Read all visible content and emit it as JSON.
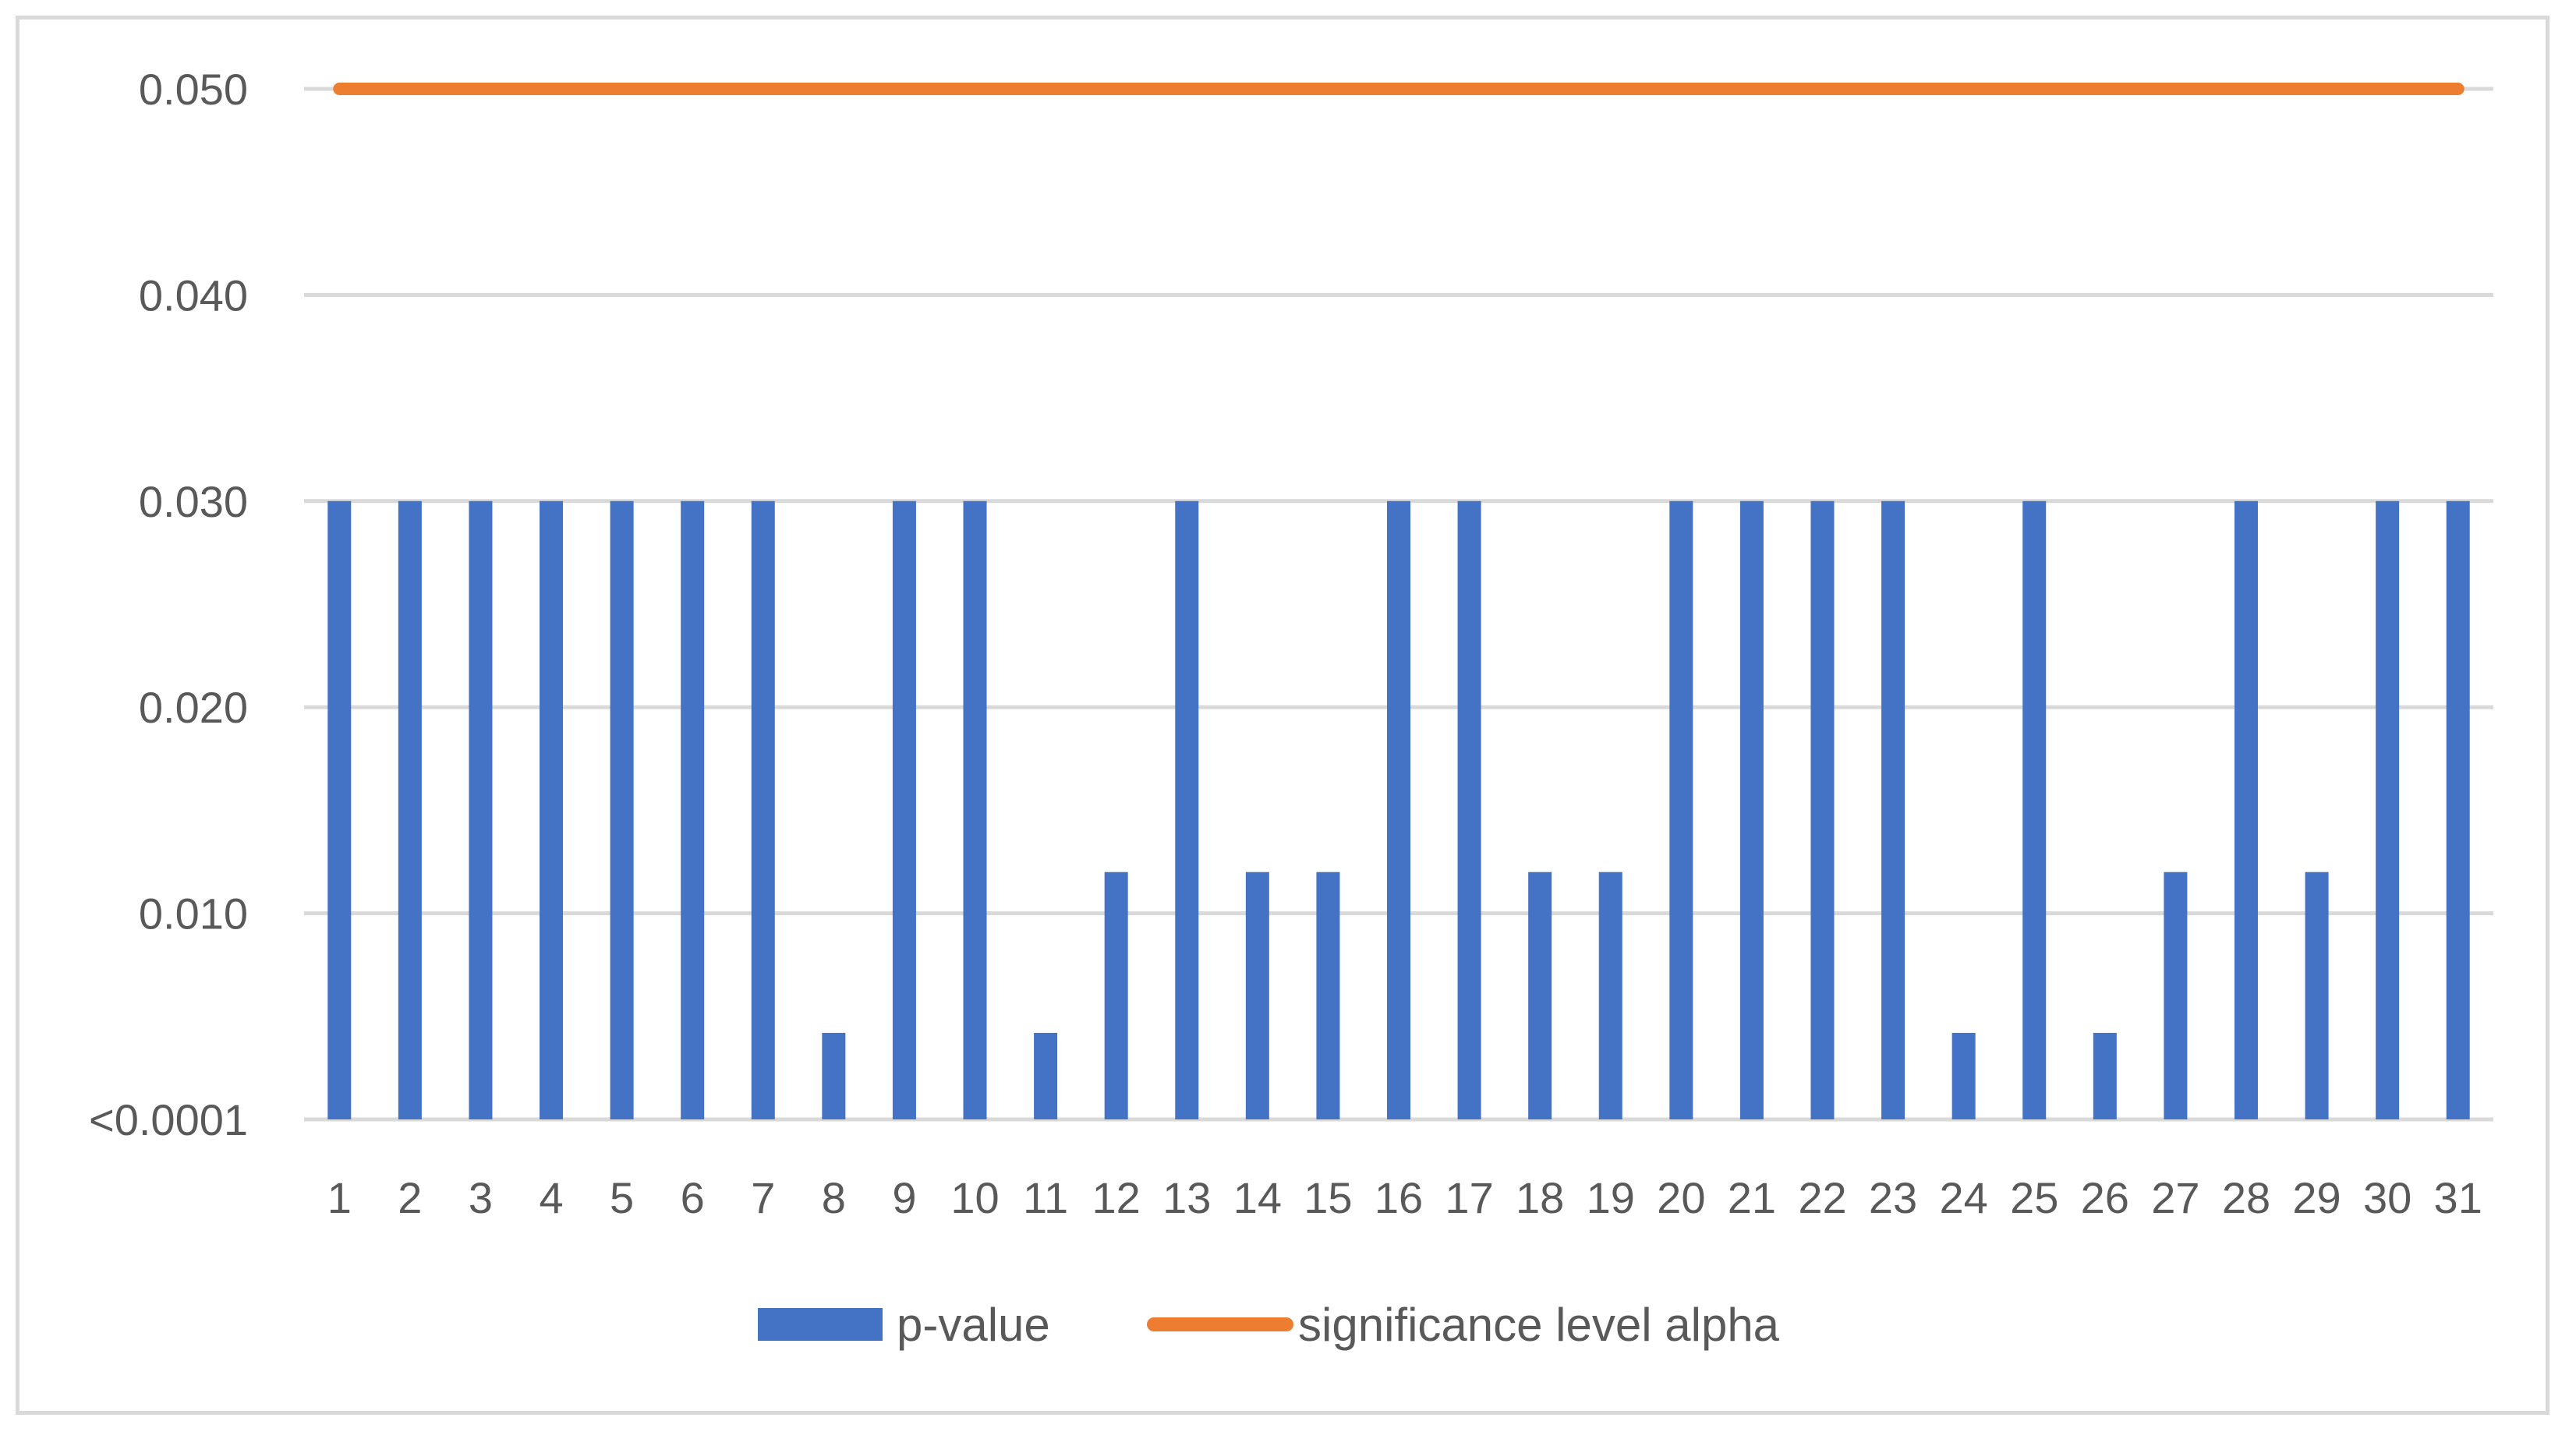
{
  "chart_data": {
    "type": "bar",
    "title": "",
    "xlabel": "",
    "ylabel": "",
    "categories": [
      "1",
      "2",
      "3",
      "4",
      "5",
      "6",
      "7",
      "8",
      "9",
      "10",
      "11",
      "12",
      "13",
      "14",
      "15",
      "16",
      "17",
      "18",
      "19",
      "20",
      "21",
      "22",
      "23",
      "24",
      "25",
      "26",
      "27",
      "28",
      "29",
      "30",
      "31"
    ],
    "y_tick_labels": [
      "<0.0001",
      "0.010",
      "0.020",
      "0.030",
      "0.040",
      "0.050"
    ],
    "y_tick_values": [
      0,
      0.01,
      0.02,
      0.03,
      0.04,
      0.05
    ],
    "ylim": [
      0,
      0.05
    ],
    "grid": true,
    "legend_position": "bottom",
    "series": [
      {
        "name": "p-value",
        "kind": "bar",
        "color": "#4472c4",
        "values": [
          0.03,
          0.03,
          0.03,
          0.03,
          0.03,
          0.03,
          0.03,
          0.0042,
          0.03,
          0.03,
          0.0042,
          0.012,
          0.03,
          0.012,
          0.012,
          0.03,
          0.03,
          0.012,
          0.012,
          0.03,
          0.03,
          0.03,
          0.03,
          0.0042,
          0.03,
          0.0042,
          0.012,
          0.03,
          0.012,
          0.03,
          0.03
        ]
      },
      {
        "name": "significance level alpha",
        "kind": "line",
        "color": "#ed7d31",
        "values": [
          0.05,
          0.05,
          0.05,
          0.05,
          0.05,
          0.05,
          0.05,
          0.05,
          0.05,
          0.05,
          0.05,
          0.05,
          0.05,
          0.05,
          0.05,
          0.05,
          0.05,
          0.05,
          0.05,
          0.05,
          0.05,
          0.05,
          0.05,
          0.05,
          0.05,
          0.05,
          0.05,
          0.05,
          0.05,
          0.05,
          0.05
        ]
      }
    ]
  }
}
